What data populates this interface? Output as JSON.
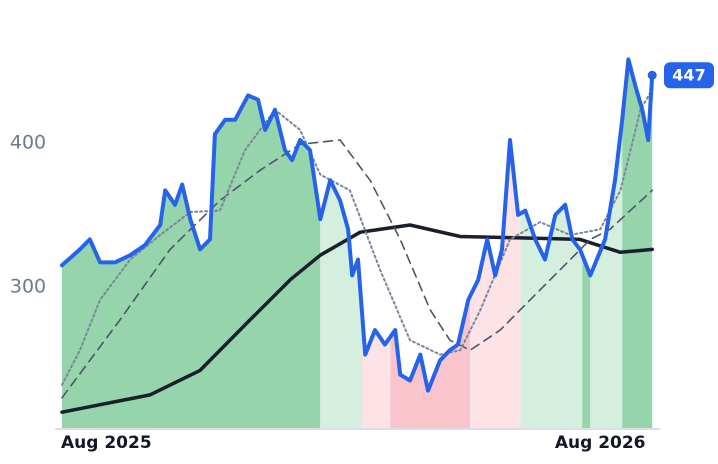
{
  "chart_data": {
    "type": "line",
    "xlim": [
      0,
      13.2
    ],
    "ylim": [
      202,
      472
    ],
    "xticks": [
      {
        "value": 0,
        "label": "Aug 2025"
      },
      {
        "value": 12,
        "label": "Aug 2026"
      }
    ],
    "yticks": [
      300,
      400
    ],
    "grid": false,
    "zones": [
      {
        "start": 0,
        "end": 5.76,
        "color": "#96d4ab"
      },
      {
        "start": 5.76,
        "end": 6.69,
        "color": "#d4efde"
      },
      {
        "start": 6.69,
        "end": 7.32,
        "color": "#fde2e6"
      },
      {
        "start": 7.32,
        "end": 9.1,
        "color": "#f9c4cc"
      },
      {
        "start": 9.1,
        "end": 10.22,
        "color": "#fde2e6"
      },
      {
        "start": 10.22,
        "end": 11.6,
        "color": "#d4efde"
      },
      {
        "start": 11.6,
        "end": 11.78,
        "color": "#96d4ab"
      },
      {
        "start": 11.78,
        "end": 12.49,
        "color": "#d4efde"
      },
      {
        "start": 12.49,
        "end": 13.16,
        "color": "#96d4ab"
      }
    ],
    "series": [
      {
        "color": "#2563eb",
        "style": "solid",
        "x": [
          0,
          0.4,
          0.62,
          0.85,
          1.18,
          1.52,
          1.85,
          2.19,
          2.3,
          2.52,
          2.68,
          2.86,
          3.08,
          3.3,
          3.41,
          3.64,
          3.86,
          4.15,
          4.37,
          4.53,
          4.75,
          4.97,
          5.13,
          5.31,
          5.53,
          5.76,
          5.98,
          6.2,
          6.38,
          6.47,
          6.6,
          6.76,
          6.98,
          7.2,
          7.43,
          7.54,
          7.76,
          7.99,
          8.16,
          8.43,
          8.65,
          8.83,
          9.06,
          9.28,
          9.48,
          9.66,
          9.81,
          9.99,
          10.17,
          10.33,
          10.55,
          10.77,
          11.0,
          11.22,
          11.38,
          11.55,
          11.78,
          12.11,
          12.33,
          12.49,
          12.63,
          12.78,
          12.94,
          13.07,
          13.16
        ],
        "values": [
          315,
          326,
          333,
          317,
          317,
          322,
          329,
          343,
          367,
          357,
          371,
          347,
          326,
          333,
          406,
          416,
          416,
          433,
          430,
          409,
          423,
          395,
          388,
          402,
          395,
          347,
          374,
          360,
          340,
          308,
          319,
          253,
          270,
          260,
          270,
          239,
          235,
          253,
          228,
          249,
          256,
          260,
          291,
          305,
          333,
          308,
          326,
          402,
          350,
          353,
          333,
          319,
          350,
          357,
          333,
          326,
          308,
          333,
          374,
          416,
          458,
          440,
          423,
          402,
          447
        ]
      },
      {
        "color": "#7a8699",
        "style": "dotted",
        "x": [
          0,
          0.4,
          0.85,
          1.52,
          2.19,
          2.86,
          3.52,
          4.08,
          4.75,
          5.31,
          5.76,
          6.42,
          7.09,
          7.76,
          8.43,
          8.88,
          9.33,
          9.99,
          10.66,
          11.33,
          12.0,
          12.45,
          12.9,
          13.16
        ],
        "values": [
          232,
          256,
          291,
          319,
          336,
          352,
          353,
          395,
          423,
          409,
          378,
          367,
          312,
          263,
          253,
          256,
          284,
          333,
          345,
          336,
          340,
          367,
          423,
          437
        ]
      },
      {
        "color": "#4a5568",
        "style": "dashed",
        "x": [
          0,
          1.29,
          2.41,
          3.52,
          4.42,
          5.31,
          6.2,
          6.87,
          7.54,
          8.21,
          8.65,
          9.1,
          9.77,
          10.44,
          11.11,
          11.78,
          12.22,
          12.67,
          13.16
        ],
        "values": [
          223,
          277,
          326,
          360,
          381,
          399,
          402,
          374,
          333,
          284,
          263,
          256,
          270,
          291,
          312,
          333,
          340,
          353,
          367
        ]
      },
      {
        "color": "#1a1f2e",
        "style": "solid",
        "x": [
          0,
          1.96,
          3.08,
          4.19,
          5.09,
          5.76,
          6.65,
          7.76,
          8.88,
          10.22,
          11.55,
          12.45,
          13.16
        ],
        "values": [
          213,
          225,
          242,
          277,
          305,
          322,
          338,
          343,
          335,
          334,
          333,
          324,
          326
        ]
      }
    ]
  }
}
